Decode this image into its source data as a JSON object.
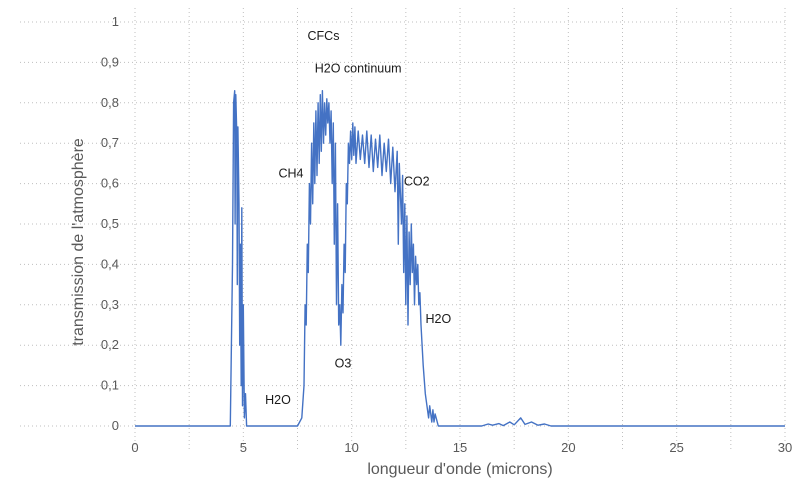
{
  "chart_data": {
    "type": "line",
    "title": "",
    "xlabel": "longueur d'onde (microns)",
    "ylabel": "transmission de l'atmosphère",
    "xlim": [
      0,
      30
    ],
    "ylim": [
      0,
      1
    ],
    "x_ticks": [
      "0",
      "5",
      "10",
      "15",
      "20",
      "25",
      "30"
    ],
    "y_ticks": [
      "0",
      "0,1",
      "0,2",
      "0,3",
      "0,4",
      "0,5",
      "0,6",
      "0,7",
      "0,8",
      "0,9",
      "1"
    ],
    "grid": true,
    "legend": "none",
    "colors": {
      "series": "#4472c4",
      "grid": "#bfbfbf",
      "text": "#595959"
    },
    "annotations": [
      {
        "text": "CFCs",
        "x": 8.7,
        "y": 0.955
      },
      {
        "text": "H2O continuum",
        "x": 10.3,
        "y": 0.875
      },
      {
        "text": "CH4",
        "x": 7.2,
        "y": 0.615
      },
      {
        "text": "CO2",
        "x": 13.0,
        "y": 0.595
      },
      {
        "text": "H2O",
        "x": 14.0,
        "y": 0.255
      },
      {
        "text": "O3",
        "x": 9.6,
        "y": 0.145
      },
      {
        "text": "H2O",
        "x": 6.6,
        "y": 0.055
      }
    ],
    "series": [
      {
        "values_xy": [
          [
            0,
            0
          ],
          [
            4.4,
            0
          ],
          [
            4.5,
            0.4
          ],
          [
            4.55,
            0.8
          ],
          [
            4.6,
            0.83
          ],
          [
            4.62,
            0.5
          ],
          [
            4.65,
            0.82
          ],
          [
            4.7,
            0.72
          ],
          [
            4.72,
            0.35
          ],
          [
            4.75,
            0.74
          ],
          [
            4.8,
            0.55
          ],
          [
            4.83,
            0.2
          ],
          [
            4.86,
            0.45
          ],
          [
            4.9,
            0.1
          ],
          [
            4.93,
            0.54
          ],
          [
            4.96,
            0.05
          ],
          [
            5.0,
            0.3
          ],
          [
            5.05,
            0.02
          ],
          [
            5.1,
            0.08
          ],
          [
            5.15,
            0
          ],
          [
            7.5,
            0
          ],
          [
            7.7,
            0.02
          ],
          [
            7.8,
            0.1
          ],
          [
            7.85,
            0.3
          ],
          [
            7.9,
            0.25
          ],
          [
            7.95,
            0.45
          ],
          [
            8.0,
            0.38
          ],
          [
            8.05,
            0.6
          ],
          [
            8.1,
            0.5
          ],
          [
            8.15,
            0.7
          ],
          [
            8.2,
            0.55
          ],
          [
            8.25,
            0.75
          ],
          [
            8.3,
            0.6
          ],
          [
            8.35,
            0.78
          ],
          [
            8.4,
            0.62
          ],
          [
            8.45,
            0.8
          ],
          [
            8.5,
            0.65
          ],
          [
            8.55,
            0.82
          ],
          [
            8.6,
            0.68
          ],
          [
            8.65,
            0.83
          ],
          [
            8.7,
            0.7
          ],
          [
            8.75,
            0.8
          ],
          [
            8.8,
            0.72
          ],
          [
            8.85,
            0.81
          ],
          [
            8.9,
            0.75
          ],
          [
            8.95,
            0.8
          ],
          [
            9.0,
            0.7
          ],
          [
            9.05,
            0.78
          ],
          [
            9.1,
            0.6
          ],
          [
            9.15,
            0.75
          ],
          [
            9.2,
            0.45
          ],
          [
            9.25,
            0.7
          ],
          [
            9.3,
            0.3
          ],
          [
            9.35,
            0.55
          ],
          [
            9.4,
            0.25
          ],
          [
            9.45,
            0.3
          ],
          [
            9.5,
            0.2
          ],
          [
            9.55,
            0.35
          ],
          [
            9.6,
            0.28
          ],
          [
            9.65,
            0.45
          ],
          [
            9.7,
            0.38
          ],
          [
            9.75,
            0.6
          ],
          [
            9.8,
            0.55
          ],
          [
            9.85,
            0.7
          ],
          [
            9.9,
            0.65
          ],
          [
            9.95,
            0.73
          ],
          [
            10.0,
            0.66
          ],
          [
            10.05,
            0.75
          ],
          [
            10.1,
            0.67
          ],
          [
            10.15,
            0.74
          ],
          [
            10.2,
            0.65
          ],
          [
            10.3,
            0.73
          ],
          [
            10.4,
            0.66
          ],
          [
            10.5,
            0.72
          ],
          [
            10.6,
            0.65
          ],
          [
            10.7,
            0.73
          ],
          [
            10.8,
            0.64
          ],
          [
            10.9,
            0.72
          ],
          [
            11.0,
            0.63
          ],
          [
            11.1,
            0.71
          ],
          [
            11.2,
            0.64
          ],
          [
            11.3,
            0.72
          ],
          [
            11.4,
            0.62
          ],
          [
            11.5,
            0.7
          ],
          [
            11.6,
            0.63
          ],
          [
            11.7,
            0.71
          ],
          [
            11.8,
            0.6
          ],
          [
            11.9,
            0.69
          ],
          [
            12.0,
            0.58
          ],
          [
            12.1,
            0.68
          ],
          [
            12.15,
            0.45
          ],
          [
            12.2,
            0.65
          ],
          [
            12.3,
            0.5
          ],
          [
            12.35,
            0.62
          ],
          [
            12.4,
            0.38
          ],
          [
            12.45,
            0.55
          ],
          [
            12.5,
            0.3
          ],
          [
            12.55,
            0.52
          ],
          [
            12.6,
            0.25
          ],
          [
            12.65,
            0.48
          ],
          [
            12.7,
            0.35
          ],
          [
            12.75,
            0.5
          ],
          [
            12.8,
            0.38
          ],
          [
            12.85,
            0.45
          ],
          [
            12.9,
            0.3
          ],
          [
            12.95,
            0.42
          ],
          [
            13.0,
            0.35
          ],
          [
            13.05,
            0.4
          ],
          [
            13.1,
            0.3
          ],
          [
            13.15,
            0.33
          ],
          [
            13.2,
            0.25
          ],
          [
            13.3,
            0.15
          ],
          [
            13.4,
            0.08
          ],
          [
            13.5,
            0.04
          ],
          [
            13.55,
            0.02
          ],
          [
            13.6,
            0.05
          ],
          [
            13.7,
            0.01
          ],
          [
            13.75,
            0.04
          ],
          [
            13.8,
            0.01
          ],
          [
            13.85,
            0.03
          ],
          [
            14.0,
            0
          ],
          [
            16.0,
            0
          ],
          [
            16.3,
            0.005
          ],
          [
            16.5,
            0.002
          ],
          [
            16.8,
            0.006
          ],
          [
            17.0,
            0.001
          ],
          [
            17.3,
            0.01
          ],
          [
            17.5,
            0.003
          ],
          [
            17.8,
            0.02
          ],
          [
            18.0,
            0.004
          ],
          [
            18.3,
            0.01
          ],
          [
            18.6,
            0.002
          ],
          [
            18.9,
            0.005
          ],
          [
            19.2,
            0
          ],
          [
            30,
            0
          ]
        ]
      }
    ]
  }
}
